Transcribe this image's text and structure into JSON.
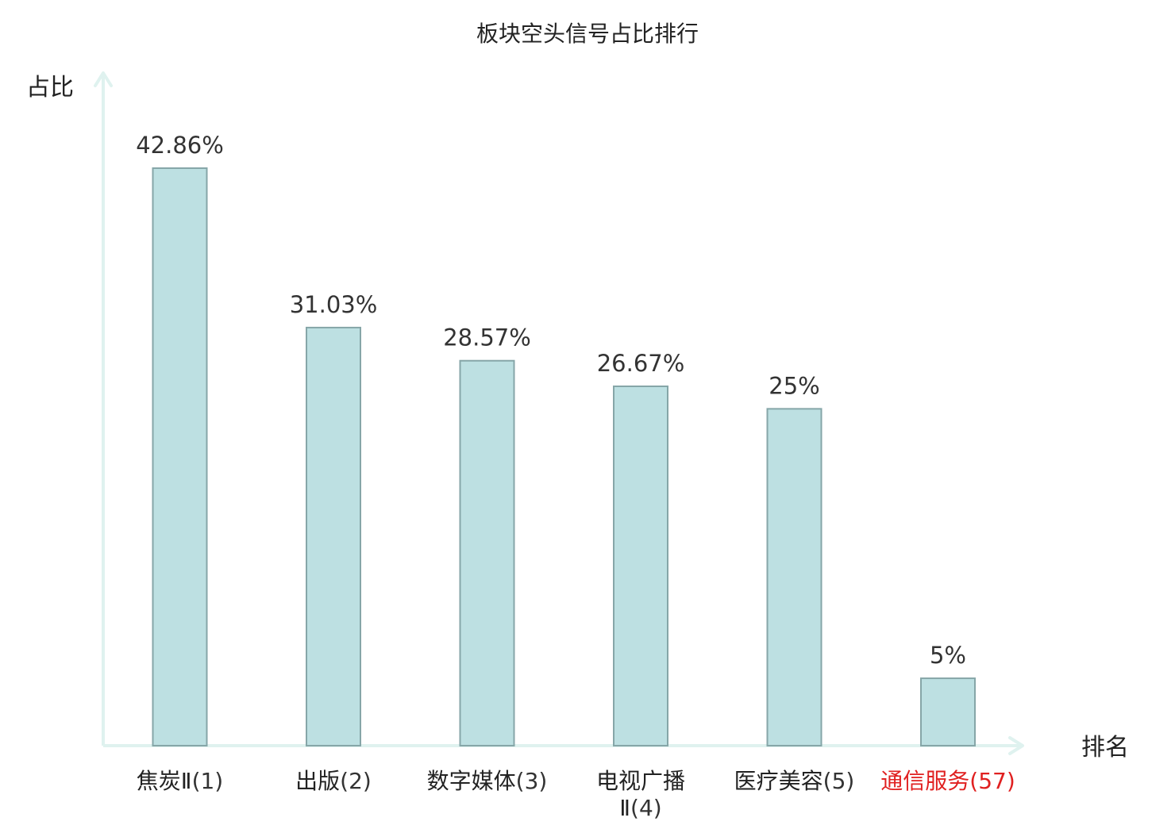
{
  "chart_data": {
    "type": "bar",
    "title": "板块空头信号占比排行",
    "ylabel": "占比",
    "xlabel": "排名",
    "grid": false,
    "legend": "none",
    "ylim": [
      0,
      50
    ],
    "categories": [
      {
        "name": "焦炭Ⅱ",
        "rank": "(1)",
        "highlight": false
      },
      {
        "name": "出版",
        "rank": "(2)",
        "highlight": false
      },
      {
        "name": "数字媒体",
        "rank": "(3)",
        "highlight": false
      },
      {
        "name": "电视广播Ⅱ",
        "rank": "(4)",
        "highlight": false
      },
      {
        "name": "医疗美容",
        "rank": "(5)",
        "highlight": false
      },
      {
        "name": "通信服务",
        "rank": "(57)",
        "highlight": true
      }
    ],
    "values": [
      42.86,
      31.03,
      28.57,
      26.67,
      25,
      5
    ],
    "value_labels": [
      "42.86%",
      "31.03%",
      "28.57%",
      "26.67%",
      "25%",
      "5%"
    ]
  },
  "colors": {
    "bar_fill": "#bde0e2",
    "bar_stroke": "#86a6a8",
    "axis": "#dff2ef",
    "text": "#222222",
    "value_text": "#333333",
    "highlight": "#e02020"
  }
}
